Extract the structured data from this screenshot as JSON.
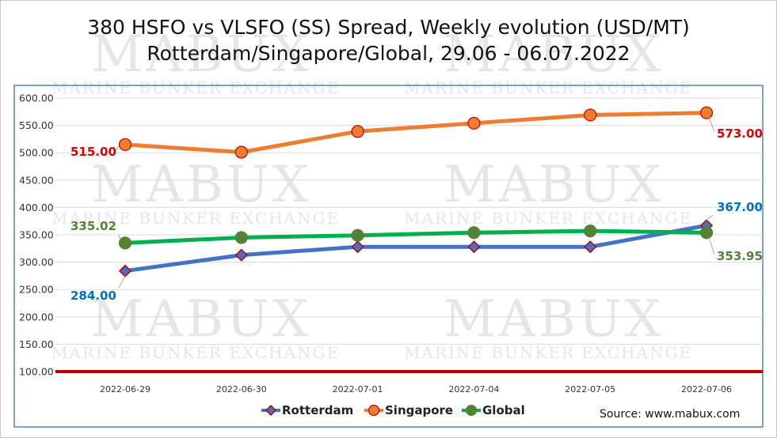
{
  "chart_data": {
    "type": "line",
    "title_line1": "380 HSFO vs VLSFO (SS) Spread, Weekly evolution (USD/MT)",
    "title_line2": "Rotterdam/Singapore/Global, 29.06 - 06.07.2022",
    "categories": [
      "2022-06-29",
      "2022-06-30",
      "2022-07-01",
      "2022-07-04",
      "2022-07-05",
      "2022-07-06"
    ],
    "ylim": [
      100,
      600
    ],
    "yticks": [
      "600.00",
      "550.00",
      "500.00",
      "450.00",
      "400.00",
      "350.00",
      "300.00",
      "250.00",
      "200.00",
      "150.00",
      "100.00"
    ],
    "grid": true,
    "legend_position": "bottom",
    "series": [
      {
        "name": "Rotterdam",
        "color": "#4472c4",
        "marker": "diamond",
        "marker_fill": "#4472c4",
        "marker_stroke": "#c00000",
        "values": [
          284,
          313,
          328,
          328,
          328,
          367
        ],
        "first_label": "284.00",
        "last_label": "367.00",
        "label_color": "#0070c0"
      },
      {
        "name": "Singapore",
        "color": "#ed7d31",
        "marker": "circle",
        "marker_fill": "#ed7d31",
        "marker_stroke": "#c00000",
        "values": [
          515,
          501,
          539,
          554,
          569,
          573
        ],
        "first_label": "515.00",
        "last_label": "573.00",
        "label_color": "#e00000"
      },
      {
        "name": "Global",
        "color": "#00b050",
        "marker": "circle",
        "marker_fill": "#548235",
        "marker_stroke": "#548235",
        "values": [
          335.02,
          345,
          349,
          354,
          357,
          353.95
        ],
        "first_label": "335.02",
        "last_label": "353.95",
        "label_color": "#548235"
      }
    ],
    "baseline": {
      "value": 100,
      "color": "#c00000"
    }
  },
  "source": "Source: www.mabux.com",
  "watermark": {
    "brand": "MABUX",
    "tagline": "MARINE BUNKER EXCHANGE"
  }
}
